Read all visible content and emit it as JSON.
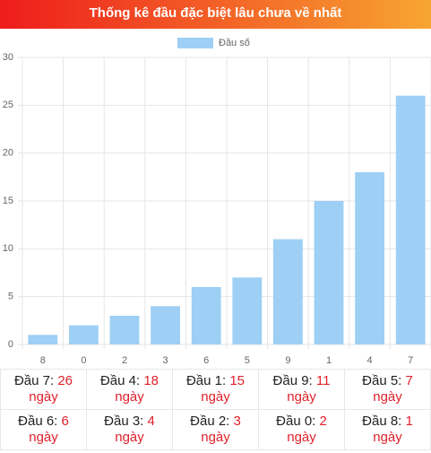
{
  "header": {
    "title": "Thống kê đầu đặc biệt lâu chưa về nhất"
  },
  "chart_data": {
    "type": "bar",
    "categories": [
      "8",
      "0",
      "2",
      "3",
      "6",
      "5",
      "9",
      "1",
      "4",
      "7"
    ],
    "series": [
      {
        "name": "Đầu số",
        "color": "#9ecff4",
        "values": [
          1,
          2,
          3,
          4,
          6,
          7,
          11,
          15,
          18,
          26
        ]
      }
    ],
    "ylim": [
      0,
      30
    ],
    "yticks": [
      0,
      5,
      10,
      15,
      20,
      25,
      30
    ],
    "grid": true,
    "legend": "top"
  },
  "table": {
    "rows": [
      [
        {
          "label": "Đầu 7:",
          "value": 26,
          "unit": "ngày"
        },
        {
          "label": "Đầu 4:",
          "value": 18,
          "unit": "ngày"
        },
        {
          "label": "Đầu 1:",
          "value": 15,
          "unit": "ngày"
        },
        {
          "label": "Đầu 9:",
          "value": 11,
          "unit": "ngày"
        },
        {
          "label": "Đầu 5:",
          "value": 7,
          "unit": "ngày"
        }
      ],
      [
        {
          "label": "Đầu 6:",
          "value": 6,
          "unit": "ngày"
        },
        {
          "label": "Đầu 3:",
          "value": 4,
          "unit": "ngày"
        },
        {
          "label": "Đầu 2:",
          "value": 3,
          "unit": "ngày"
        },
        {
          "label": "Đầu 0:",
          "value": 2,
          "unit": "ngày"
        },
        {
          "label": "Đầu 8:",
          "value": 1,
          "unit": "ngày"
        }
      ]
    ]
  }
}
